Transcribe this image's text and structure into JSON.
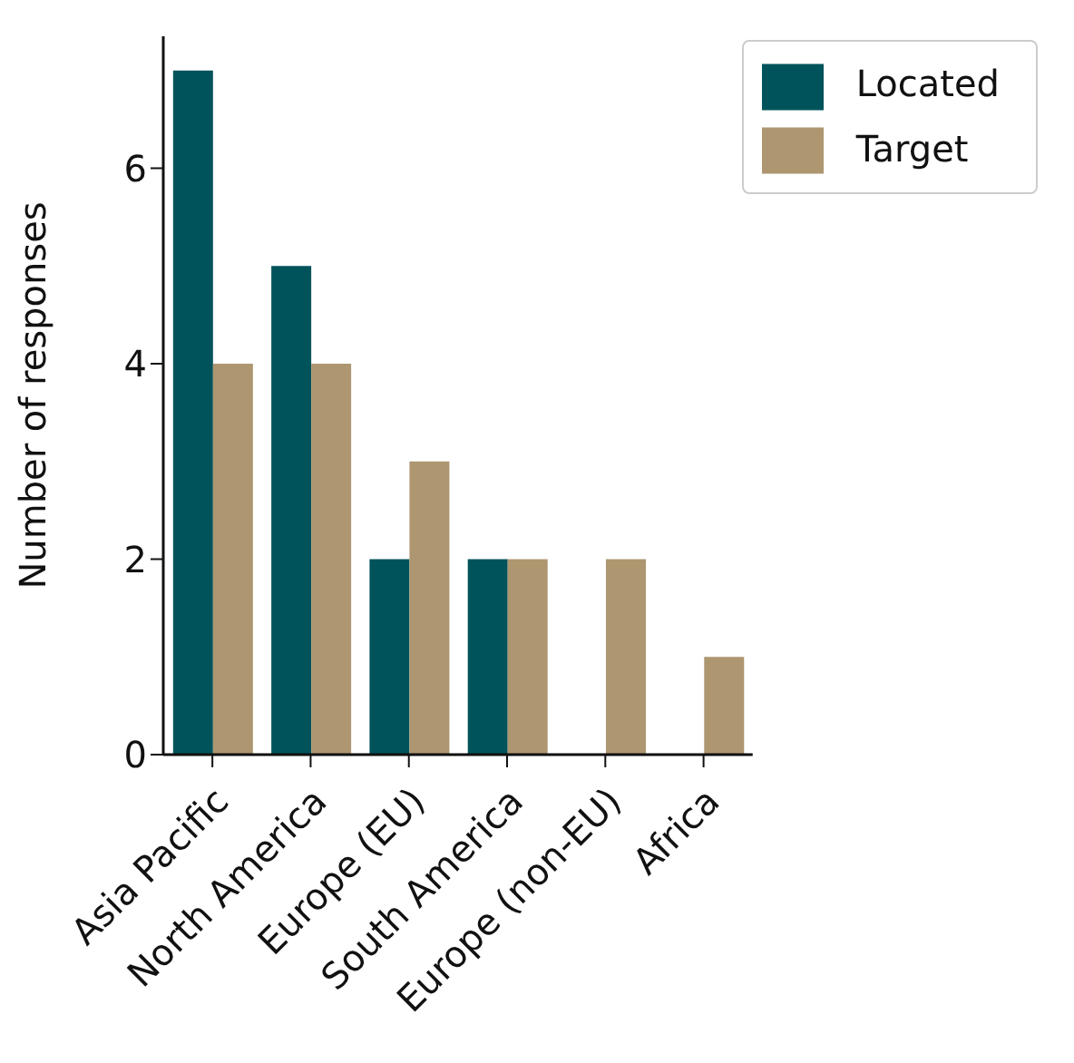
{
  "chart_data": {
    "type": "bar",
    "ylabel": "Number of responses",
    "categories": [
      "Asia Pacific",
      "North America",
      "Europe (EU)",
      "South America",
      "Europe (non-EU)",
      "Africa"
    ],
    "series": [
      {
        "name": "Located",
        "color": "#00535b",
        "values": [
          7,
          5,
          2,
          2,
          0,
          0
        ]
      },
      {
        "name": "Target",
        "color": "#ad9670",
        "values": [
          4,
          4,
          3,
          2,
          2,
          1
        ]
      }
    ],
    "ylim": [
      0,
      7.35
    ],
    "yticks": [
      0,
      2,
      4,
      6
    ],
    "grid": false,
    "legend": "top right"
  }
}
